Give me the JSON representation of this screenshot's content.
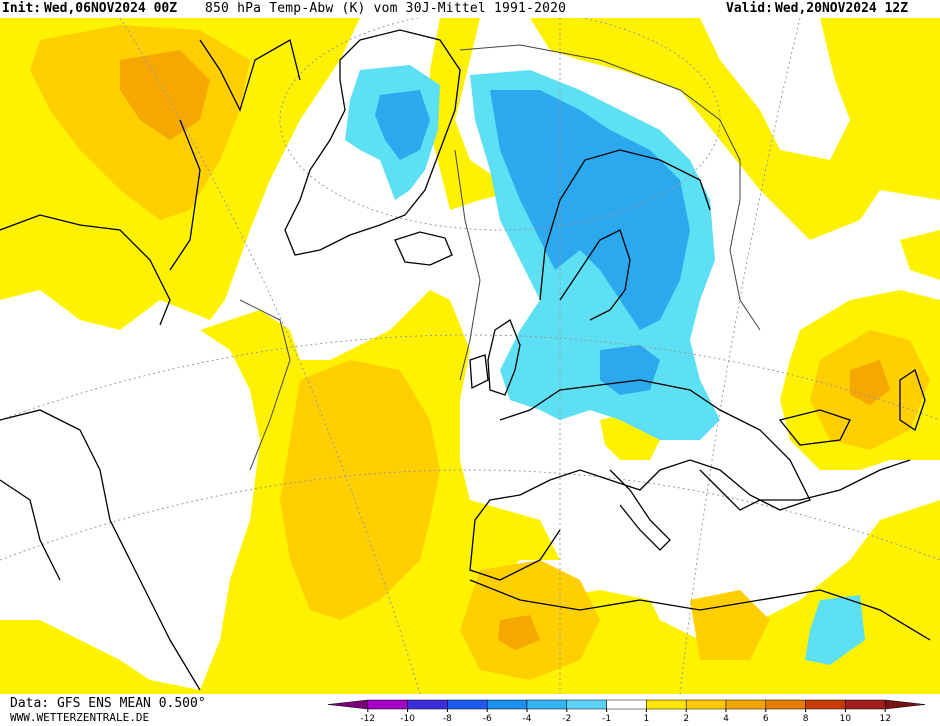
{
  "header": {
    "init_label": "Init:",
    "init_value": "Wed,06NOV2024 00Z",
    "title": "850 hPa Temp-Abw (K) vom 30J-Mittel 1991-2020",
    "valid_label": "Valid:",
    "valid_value": "Wed,20NOV2024 12Z"
  },
  "footer": {
    "data_source": "Data: GFS ENS MEAN 0.500°",
    "site": "WWW.WETTERZENTRALE.DE"
  },
  "legend": {
    "ticks": [
      "-12",
      "-10",
      "-8",
      "-6",
      "-4",
      "-2",
      "-1",
      "1",
      "2",
      "4",
      "6",
      "8",
      "10",
      "12"
    ],
    "colors": [
      "#7a007a",
      "#a400c8",
      "#3c2ddc",
      "#1e5af0",
      "#1c8ff0",
      "#32b4f5",
      "#5ad2f5",
      "#ffffff",
      "#ffe600",
      "#ffc800",
      "#f5a500",
      "#e67d00",
      "#c83c00",
      "#a01e1e",
      "#7a1414"
    ]
  },
  "map": {
    "colors": {
      "warm_light": "#fff200",
      "warm": "#ffcf00",
      "warm_strong": "#f5a800",
      "cold_light": "#5de0f3",
      "cold": "#2ba8ee",
      "neutral": "#ffffff",
      "coast": "#000000"
    }
  }
}
